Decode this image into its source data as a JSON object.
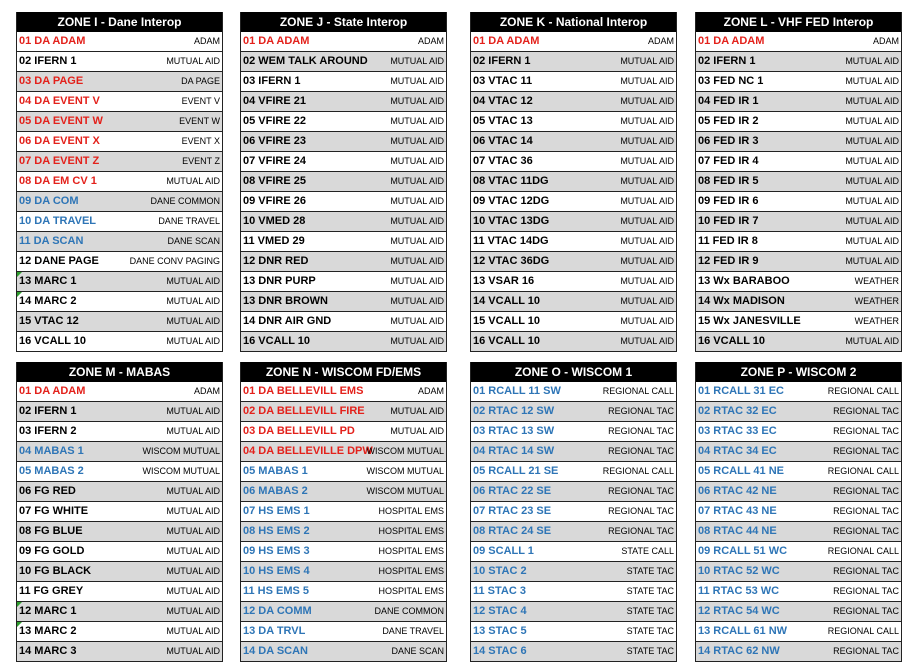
{
  "zones": [
    {
      "title": "ZONE I - Dane Interop",
      "rows": [
        {
          "name": "01 DA ADAM",
          "desc": "ADAM",
          "color": "red",
          "shaded": false
        },
        {
          "name": "02 IFERN 1",
          "desc": "MUTUAL AID",
          "color": "black",
          "shaded": false
        },
        {
          "name": "03 DA PAGE",
          "desc": "DA PAGE",
          "color": "red",
          "shaded": true
        },
        {
          "name": "04 DA EVENT V",
          "desc": "EVENT V",
          "color": "red",
          "shaded": false
        },
        {
          "name": "05 DA EVENT W",
          "desc": "EVENT W",
          "color": "red",
          "shaded": true
        },
        {
          "name": "06 DA EVENT X",
          "desc": "EVENT X",
          "color": "red",
          "shaded": false
        },
        {
          "name": "07 DA EVENT Z",
          "desc": "EVENT Z",
          "color": "red",
          "shaded": true
        },
        {
          "name": "08 DA EM CV 1",
          "desc": "MUTUAL AID",
          "color": "red",
          "shaded": false
        },
        {
          "name": "09 DA COM",
          "desc": "DANE COMMON",
          "color": "blue",
          "shaded": true
        },
        {
          "name": "10 DA TRAVEL",
          "desc": "DANE TRAVEL",
          "color": "blue",
          "shaded": false
        },
        {
          "name": "11 DA SCAN",
          "desc": "DANE SCAN",
          "color": "blue",
          "shaded": true
        },
        {
          "name": "12 DANE PAGE",
          "desc": "DANE CONV PAGING",
          "color": "black",
          "shaded": false
        },
        {
          "name": "13 MARC 1",
          "desc": "MUTUAL AID",
          "color": "black",
          "shaded": true,
          "flag": true
        },
        {
          "name": "14 MARC 2",
          "desc": "MUTUAL AID",
          "color": "black",
          "shaded": false,
          "flag": true
        },
        {
          "name": "15 VTAC 12",
          "desc": "MUTUAL AID",
          "color": "black",
          "shaded": true
        },
        {
          "name": "16 VCALL 10",
          "desc": "MUTUAL AID",
          "color": "black",
          "shaded": false
        }
      ]
    },
    {
      "title": "ZONE J - State Interop",
      "rows": [
        {
          "name": "01 DA ADAM",
          "desc": "ADAM",
          "color": "red",
          "shaded": false
        },
        {
          "name": "02 WEM TALK AROUND",
          "desc": "MUTUAL AID",
          "color": "black",
          "shaded": true
        },
        {
          "name": "03 IFERN 1",
          "desc": "MUTUAL AID",
          "color": "black",
          "shaded": false
        },
        {
          "name": "04 VFIRE 21",
          "desc": "MUTUAL AID",
          "color": "black",
          "shaded": true
        },
        {
          "name": "05 VFIRE 22",
          "desc": "MUTUAL AID",
          "color": "black",
          "shaded": false
        },
        {
          "name": "06 VFIRE 23",
          "desc": "MUTUAL AID",
          "color": "black",
          "shaded": true
        },
        {
          "name": "07 VFIRE 24",
          "desc": "MUTUAL AID",
          "color": "black",
          "shaded": false
        },
        {
          "name": "08 VFIRE 25",
          "desc": "MUTUAL AID",
          "color": "black",
          "shaded": true
        },
        {
          "name": "09 VFIRE 26",
          "desc": "MUTUAL AID",
          "color": "black",
          "shaded": false
        },
        {
          "name": "10 VMED 28",
          "desc": "MUTUAL AID",
          "color": "black",
          "shaded": true
        },
        {
          "name": "11 VMED 29",
          "desc": "MUTUAL AID",
          "color": "black",
          "shaded": false
        },
        {
          "name": "12 DNR RED",
          "desc": "MUTUAL AID",
          "color": "black",
          "shaded": true
        },
        {
          "name": "13 DNR PURP",
          "desc": "MUTUAL AID",
          "color": "black",
          "shaded": false
        },
        {
          "name": "13 DNR BROWN",
          "desc": "MUTUAL AID",
          "color": "black",
          "shaded": true
        },
        {
          "name": "14 DNR AIR GND",
          "desc": "MUTUAL AID",
          "color": "black",
          "shaded": false
        },
        {
          "name": "16 VCALL 10",
          "desc": "MUTUAL AID",
          "color": "black",
          "shaded": true
        }
      ]
    },
    {
      "title": "ZONE K - National Interop",
      "rows": [
        {
          "name": "01 DA ADAM",
          "desc": "ADAM",
          "color": "red",
          "shaded": false
        },
        {
          "name": "02 IFERN 1",
          "desc": "MUTUAL AID",
          "color": "black",
          "shaded": true
        },
        {
          "name": "03 VTAC 11",
          "desc": "MUTUAL AID",
          "color": "black",
          "shaded": false
        },
        {
          "name": "04 VTAC 12",
          "desc": "MUTUAL AID",
          "color": "black",
          "shaded": true
        },
        {
          "name": "05 VTAC 13",
          "desc": "MUTUAL AID",
          "color": "black",
          "shaded": false
        },
        {
          "name": "06 VTAC 14",
          "desc": "MUTUAL AID",
          "color": "black",
          "shaded": true
        },
        {
          "name": "07 VTAC 36",
          "desc": "MUTUAL AID",
          "color": "black",
          "shaded": false
        },
        {
          "name": "08 VTAC 11DG",
          "desc": "MUTUAL AID",
          "color": "black",
          "shaded": true
        },
        {
          "name": "09 VTAC 12DG",
          "desc": "MUTUAL AID",
          "color": "black",
          "shaded": false
        },
        {
          "name": "10 VTAC 13DG",
          "desc": "MUTUAL AID",
          "color": "black",
          "shaded": true
        },
        {
          "name": "11 VTAC 14DG",
          "desc": "MUTUAL AID",
          "color": "black",
          "shaded": false
        },
        {
          "name": "12 VTAC 36DG",
          "desc": "MUTUAL AID",
          "color": "black",
          "shaded": true
        },
        {
          "name": "13 VSAR 16",
          "desc": "MUTUAL AID",
          "color": "black",
          "shaded": false
        },
        {
          "name": "14 VCALL 10",
          "desc": "MUTUAL AID",
          "color": "black",
          "shaded": true
        },
        {
          "name": "15 VCALL 10",
          "desc": "MUTUAL AID",
          "color": "black",
          "shaded": false
        },
        {
          "name": "16 VCALL 10",
          "desc": "MUTUAL AID",
          "color": "black",
          "shaded": true
        }
      ]
    },
    {
      "title": "ZONE L - VHF FED Interop",
      "rows": [
        {
          "name": "01 DA ADAM",
          "desc": "ADAM",
          "color": "red",
          "shaded": false
        },
        {
          "name": "02 IFERN 1",
          "desc": "MUTUAL AID",
          "color": "black",
          "shaded": true
        },
        {
          "name": "03 FED NC 1",
          "desc": "MUTUAL AID",
          "color": "black",
          "shaded": false
        },
        {
          "name": "04 FED IR 1",
          "desc": "MUTUAL AID",
          "color": "black",
          "shaded": true
        },
        {
          "name": "05 FED IR 2",
          "desc": "MUTUAL AID",
          "color": "black",
          "shaded": false
        },
        {
          "name": "06 FED IR 3",
          "desc": "MUTUAL AID",
          "color": "black",
          "shaded": true
        },
        {
          "name": "07 FED IR 4",
          "desc": "MUTUAL AID",
          "color": "black",
          "shaded": false
        },
        {
          "name": "08 FED IR 5",
          "desc": "MUTUAL AID",
          "color": "black",
          "shaded": true
        },
        {
          "name": "09 FED IR 6",
          "desc": "MUTUAL AID",
          "color": "black",
          "shaded": false
        },
        {
          "name": "10 FED IR 7",
          "desc": "MUTUAL AID",
          "color": "black",
          "shaded": true
        },
        {
          "name": "11 FED IR 8",
          "desc": "MUTUAL AID",
          "color": "black",
          "shaded": false
        },
        {
          "name": "12 FED IR 9",
          "desc": "MUTUAL AID",
          "color": "black",
          "shaded": true
        },
        {
          "name": "13 Wx BARABOO",
          "desc": "WEATHER",
          "color": "black",
          "shaded": false
        },
        {
          "name": "14 Wx MADISON",
          "desc": "WEATHER",
          "color": "black",
          "shaded": true
        },
        {
          "name": "15 Wx JANESVILLE",
          "desc": "WEATHER",
          "color": "black",
          "shaded": false
        },
        {
          "name": "16 VCALL 10",
          "desc": "MUTUAL AID",
          "color": "black",
          "shaded": true
        }
      ]
    },
    {
      "title": "ZONE M - MABAS",
      "rows": [
        {
          "name": "01 DA ADAM",
          "desc": "ADAM",
          "color": "red",
          "shaded": false
        },
        {
          "name": "02 IFERN 1",
          "desc": "MUTUAL AID",
          "color": "black",
          "shaded": true
        },
        {
          "name": "03 IFERN 2",
          "desc": "MUTUAL AID",
          "color": "black",
          "shaded": false
        },
        {
          "name": "04 MABAS 1",
          "desc": "WISCOM MUTUAL",
          "color": "blue",
          "shaded": true
        },
        {
          "name": "05 MABAS 2",
          "desc": "WISCOM MUTUAL",
          "color": "blue",
          "shaded": false
        },
        {
          "name": "06 FG RED",
          "desc": "MUTUAL AID",
          "color": "black",
          "shaded": true
        },
        {
          "name": "07 FG WHITE",
          "desc": "MUTUAL AID",
          "color": "black",
          "shaded": false
        },
        {
          "name": "08 FG BLUE",
          "desc": "MUTUAL AID",
          "color": "black",
          "shaded": true
        },
        {
          "name": "09 FG GOLD",
          "desc": "MUTUAL AID",
          "color": "black",
          "shaded": false
        },
        {
          "name": "10 FG BLACK",
          "desc": "MUTUAL AID",
          "color": "black",
          "shaded": true
        },
        {
          "name": "11 FG GREY",
          "desc": "MUTUAL AID",
          "color": "black",
          "shaded": false
        },
        {
          "name": "12 MARC 1",
          "desc": "MUTUAL AID",
          "color": "black",
          "shaded": true,
          "flag": true
        },
        {
          "name": "13 MARC 2",
          "desc": "MUTUAL AID",
          "color": "black",
          "shaded": false,
          "flag": true
        },
        {
          "name": "14 MARC 3",
          "desc": "MUTUAL AID",
          "color": "black",
          "shaded": true
        }
      ]
    },
    {
      "title": "ZONE N - WISCOM FD/EMS",
      "rows": [
        {
          "name": "01 DA BELLEVILL EMS",
          "desc": "ADAM",
          "color": "red",
          "shaded": false
        },
        {
          "name": "02 DA BELLEVILL FIRE",
          "desc": "MUTUAL AID",
          "color": "red",
          "shaded": true
        },
        {
          "name": "03 DA BELLEVILL PD",
          "desc": "MUTUAL AID",
          "color": "red",
          "shaded": false
        },
        {
          "name": "04 DA BELLEVILLE DPW",
          "desc": "WISCOM MUTUAL",
          "color": "red",
          "shaded": true
        },
        {
          "name": "05 MABAS 1",
          "desc": "WISCOM MUTUAL",
          "color": "blue",
          "shaded": false
        },
        {
          "name": "06 MABAS 2",
          "desc": "WISCOM MUTUAL",
          "color": "blue",
          "shaded": true
        },
        {
          "name": "07 HS EMS 1",
          "desc": "HOSPITAL EMS",
          "color": "blue",
          "shaded": false
        },
        {
          "name": "08 HS EMS 2",
          "desc": "HOSPITAL EMS",
          "color": "blue",
          "shaded": true
        },
        {
          "name": "09 HS EMS 3",
          "desc": "HOSPITAL EMS",
          "color": "blue",
          "shaded": false
        },
        {
          "name": "10 HS EMS 4",
          "desc": "HOSPITAL EMS",
          "color": "blue",
          "shaded": true
        },
        {
          "name": "11 HS EMS 5",
          "desc": "HOSPITAL EMS",
          "color": "blue",
          "shaded": false
        },
        {
          "name": "12 DA COMM",
          "desc": "DANE COMMON",
          "color": "blue",
          "shaded": true
        },
        {
          "name": "13 DA TRVL",
          "desc": "DANE TRAVEL",
          "color": "blue",
          "shaded": false
        },
        {
          "name": "14 DA SCAN",
          "desc": "DANE SCAN",
          "color": "blue",
          "shaded": true
        }
      ]
    },
    {
      "title": "ZONE O - WISCOM 1",
      "rows": [
        {
          "name": "01 RCALL 11 SW",
          "desc": "REGIONAL CALL",
          "color": "blue",
          "shaded": false
        },
        {
          "name": "02 RTAC 12 SW",
          "desc": "REGIONAL TAC",
          "color": "blue",
          "shaded": true
        },
        {
          "name": "03 RTAC 13 SW",
          "desc": "REGIONAL TAC",
          "color": "blue",
          "shaded": false
        },
        {
          "name": "04 RTAC 14 SW",
          "desc": "REGIONAL TAC",
          "color": "blue",
          "shaded": true
        },
        {
          "name": "05 RCALL 21 SE",
          "desc": "REGIONAL CALL",
          "color": "blue",
          "shaded": false
        },
        {
          "name": "06 RTAC 22 SE",
          "desc": "REGIONAL TAC",
          "color": "blue",
          "shaded": true
        },
        {
          "name": "07 RTAC 23 SE",
          "desc": "REGIONAL TAC",
          "color": "blue",
          "shaded": false
        },
        {
          "name": "08 RTAC 24 SE",
          "desc": "REGIONAL TAC",
          "color": "blue",
          "shaded": true
        },
        {
          "name": "09 SCALL 1",
          "desc": "STATE CALL",
          "color": "blue",
          "shaded": false
        },
        {
          "name": "10 STAC 2",
          "desc": "STATE TAC",
          "color": "blue",
          "shaded": true
        },
        {
          "name": "11 STAC 3",
          "desc": "STATE TAC",
          "color": "blue",
          "shaded": false
        },
        {
          "name": "12 STAC 4",
          "desc": "STATE TAC",
          "color": "blue",
          "shaded": true
        },
        {
          "name": "13 STAC 5",
          "desc": "STATE TAC",
          "color": "blue",
          "shaded": false
        },
        {
          "name": "14 STAC 6",
          "desc": "STATE TAC",
          "color": "blue",
          "shaded": true
        }
      ]
    },
    {
      "title": "ZONE P - WISCOM 2",
      "rows": [
        {
          "name": "01 RCALL 31 EC",
          "desc": "REGIONAL CALL",
          "color": "blue",
          "shaded": false
        },
        {
          "name": "02 RTAC 32 EC",
          "desc": "REGIONAL TAC",
          "color": "blue",
          "shaded": true
        },
        {
          "name": "03 RTAC 33 EC",
          "desc": "REGIONAL TAC",
          "color": "blue",
          "shaded": false
        },
        {
          "name": "04 RTAC 34 EC",
          "desc": "REGIONAL TAC",
          "color": "blue",
          "shaded": true
        },
        {
          "name": "05 RCALL 41 NE",
          "desc": "REGIONAL CALL",
          "color": "blue",
          "shaded": false
        },
        {
          "name": "06 RTAC 42 NE",
          "desc": "REGIONAL TAC",
          "color": "blue",
          "shaded": true
        },
        {
          "name": "07 RTAC 43 NE",
          "desc": "REGIONAL TAC",
          "color": "blue",
          "shaded": false
        },
        {
          "name": "08 RTAC 44 NE",
          "desc": "REGIONAL TAC",
          "color": "blue",
          "shaded": true
        },
        {
          "name": "09 RCALL 51 WC",
          "desc": "REGIONAL CALL",
          "color": "blue",
          "shaded": false
        },
        {
          "name": "10 RTAC 52 WC",
          "desc": "REGIONAL TAC",
          "color": "blue",
          "shaded": true
        },
        {
          "name": "11 RTAC 53 WC",
          "desc": "REGIONAL TAC",
          "color": "blue",
          "shaded": false
        },
        {
          "name": "12 RTAC 54 WC",
          "desc": "REGIONAL TAC",
          "color": "blue",
          "shaded": true
        },
        {
          "name": "13 RCALL 61 NW",
          "desc": "REGIONAL CALL",
          "color": "blue",
          "shaded": false
        },
        {
          "name": "14 RTAC 62 NW",
          "desc": "REGIONAL TAC",
          "color": "blue",
          "shaded": true
        }
      ]
    }
  ],
  "colors": {
    "red": "#e3211b",
    "blue": "#2e75b6",
    "black": "#000000",
    "shade": "#d9d9d9",
    "header_bg": "#000000"
  }
}
